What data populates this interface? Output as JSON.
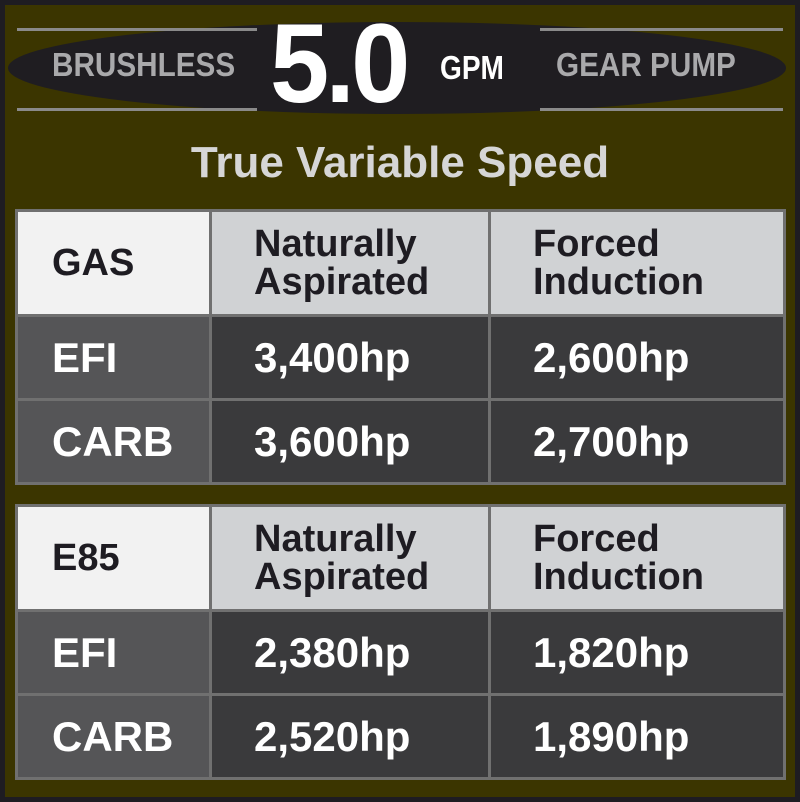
{
  "header": {
    "left_text": "BRUSHLESS",
    "big_number": "5.0",
    "unit": "GPM",
    "right_text": "GEAR PUMP",
    "subtitle": "True Variable Speed"
  },
  "tables": [
    {
      "fuel": "GAS",
      "columns": [
        "Naturally Aspirated",
        "Forced Induction"
      ],
      "rows": [
        {
          "label": "EFI",
          "values": [
            "3,400hp",
            "2,600hp"
          ]
        },
        {
          "label": "CARB",
          "values": [
            "3,600hp",
            "2,700hp"
          ]
        }
      ]
    },
    {
      "fuel": "E85",
      "columns": [
        "Naturally Aspirated",
        "Forced Induction"
      ],
      "rows": [
        {
          "label": "EFI",
          "values": [
            "2,380hp",
            "1,820hp"
          ]
        },
        {
          "label": "CARB",
          "values": [
            "2,520hp",
            "1,890hp"
          ]
        }
      ]
    }
  ],
  "colors": {
    "background": "#3b3500",
    "border": "#1e1c22",
    "header_cell": "#d0d2d4",
    "value_cell": "#3a3a3c"
  }
}
